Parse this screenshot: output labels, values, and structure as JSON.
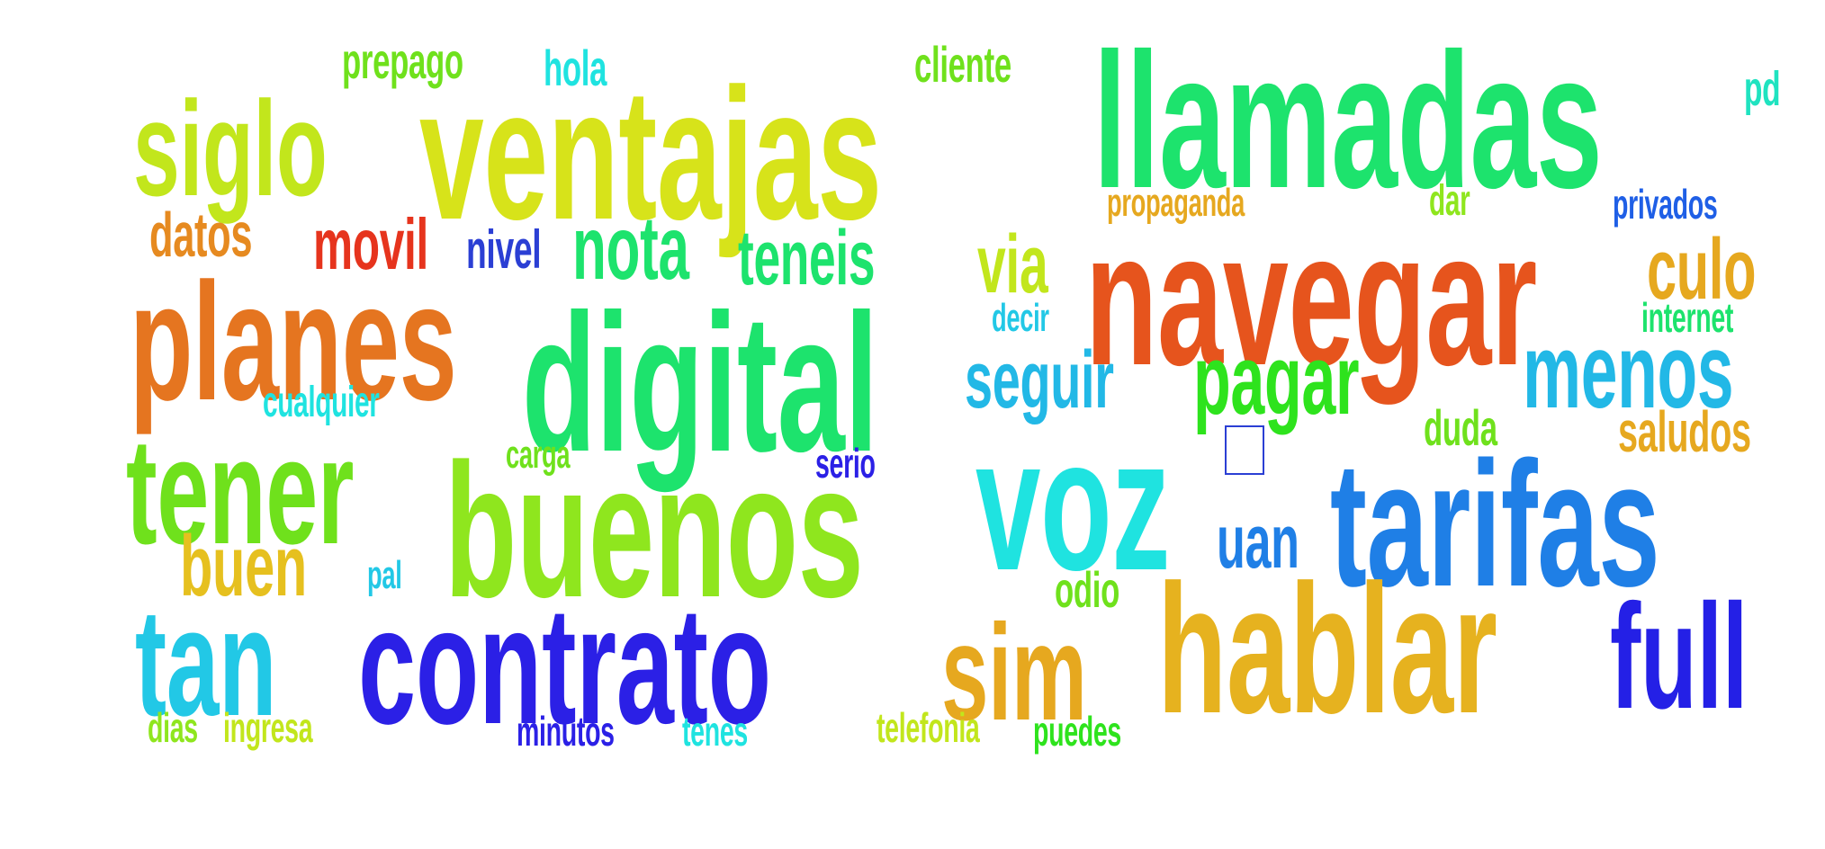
{
  "words": {
    "llamadas": {
      "text": "llamadas",
      "color": "#1de36d"
    },
    "ventajas": {
      "text": "ventajas",
      "color": "#d7e31a"
    },
    "siglo": {
      "text": "siglo",
      "color": "#c2e61c"
    },
    "navegar": {
      "text": "navegar",
      "color": "#e6541d"
    },
    "digital": {
      "text": "digital",
      "color": "#1de36d"
    },
    "planes": {
      "text": "planes",
      "color": "#e57520"
    },
    "tener": {
      "text": "tener",
      "color": "#6fe11c"
    },
    "buenos": {
      "text": "buenos",
      "color": "#8fe61e"
    },
    "voz": {
      "text": "voz",
      "color": "#1fe3e0"
    },
    "tarifas": {
      "text": "tarifas",
      "color": "#1f7fe6"
    },
    "hablar": {
      "text": "hablar",
      "color": "#e6b21f"
    },
    "full": {
      "text": "full",
      "color": "#2420e6"
    },
    "contrato": {
      "text": "contrato",
      "color": "#2b20e6"
    },
    "tan": {
      "text": "tan",
      "color": "#22c8e6"
    },
    "sim": {
      "text": "sim",
      "color": "#e6a81f"
    },
    "menos": {
      "text": "menos",
      "color": "#22b8e6"
    },
    "pagar": {
      "text": "pagar",
      "color": "#2ee31d"
    },
    "seguir": {
      "text": "seguir",
      "color": "#22b8e6"
    },
    "nota": {
      "text": "nota",
      "color": "#1de36d"
    },
    "teneis": {
      "text": "teneis",
      "color": "#1de36d"
    },
    "via": {
      "text": "via",
      "color": "#c2e61c"
    },
    "culo": {
      "text": "culo",
      "color": "#e6a81f"
    },
    "movil": {
      "text": "movil",
      "color": "#e6341d"
    },
    "buen": {
      "text": "buen",
      "color": "#e6c01f"
    },
    "uan": {
      "text": "uan",
      "color": "#1f7fe6"
    },
    "datos": {
      "text": "datos",
      "color": "#e68a20"
    },
    "saludos": {
      "text": "saludos",
      "color": "#e6a81f"
    },
    "nivel": {
      "text": "nivel",
      "color": "#2b3fd4"
    },
    "duda": {
      "text": "duda",
      "color": "#6fe11c"
    },
    "odio": {
      "text": "odio",
      "color": "#6fe11c"
    },
    "prepago": {
      "text": "prepago",
      "color": "#6fe11c"
    },
    "cliente": {
      "text": "cliente",
      "color": "#6fe11c"
    },
    "hola": {
      "text": "hola",
      "color": "#1fe3e0"
    },
    "pd": {
      "text": "pd",
      "color": "#1fe3c0"
    },
    "cualquier": {
      "text": "cualquier",
      "color": "#1fe3e0"
    },
    "internet": {
      "text": "internet",
      "color": "#1de36d"
    },
    "decir": {
      "text": "decir",
      "color": "#22c8e6"
    },
    "propaganda": {
      "text": "propaganda",
      "color": "#e6a81f"
    },
    "dar": {
      "text": "dar",
      "color": "#8fe61e"
    },
    "privados": {
      "text": "privados",
      "color": "#1f5fe6"
    },
    "serio": {
      "text": "serio",
      "color": "#2b20e6"
    },
    "carga": {
      "text": "carga",
      "color": "#6fe11c"
    },
    "pal": {
      "text": "pal",
      "color": "#22c8e6"
    },
    "dias": {
      "text": "dias",
      "color": "#8fe61e"
    },
    "ingresa": {
      "text": "ingresa",
      "color": "#c2e61c"
    },
    "minutos": {
      "text": "minutos",
      "color": "#2b20e6"
    },
    "tenes": {
      "text": "tenes",
      "color": "#1fe3e0"
    },
    "telefonia": {
      "text": "telefonia",
      "color": "#c2e61c"
    },
    "puedes": {
      "text": "puedes",
      "color": "#2ee31d"
    }
  },
  "missing_glyph_icon": "tofu-box-icon"
}
